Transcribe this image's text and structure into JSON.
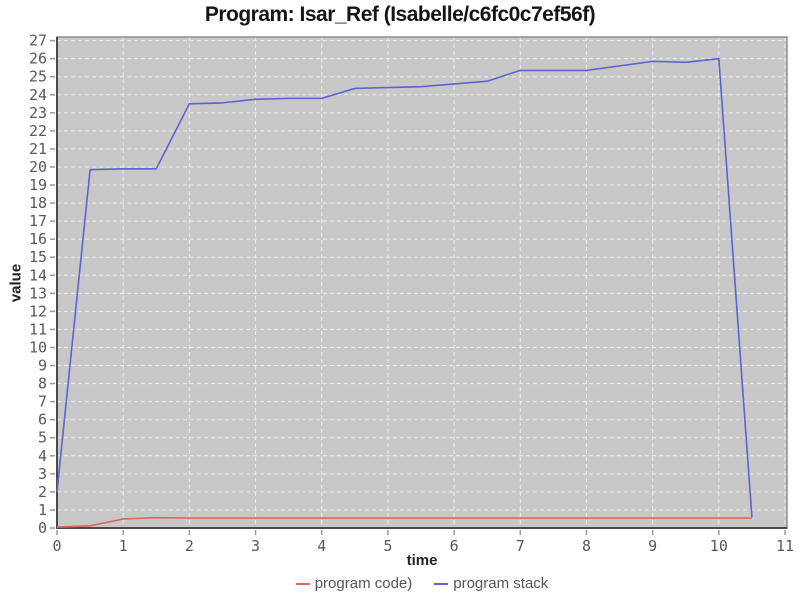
{
  "chart_data": {
    "type": "line",
    "title": "Program: Isar_Ref (Isabelle/c6fc0c7ef56f)",
    "xlabel": "time",
    "ylabel": "value",
    "xlim": [
      0,
      11.03
    ],
    "ylim": [
      0,
      27.2
    ],
    "grid": true,
    "legend_position": "bottom-center",
    "plot_bg": "#c8c8c8",
    "grid_color": "#ececec",
    "axis_color": "#4a4a4a",
    "border_color": "#8e8e8e",
    "x_ticks": [
      0,
      1,
      2,
      3,
      4,
      5,
      6,
      7,
      8,
      9,
      10,
      11
    ],
    "y_ticks": [
      0,
      1,
      2,
      3,
      4,
      5,
      6,
      7,
      8,
      9,
      10,
      11,
      12,
      13,
      14,
      15,
      16,
      17,
      18,
      19,
      20,
      21,
      22,
      23,
      24,
      25,
      26,
      27
    ],
    "x": [
      0,
      0.5,
      1,
      1.5,
      2,
      2.5,
      3,
      3.5,
      4,
      4.5,
      5,
      5.5,
      6,
      6.5,
      7,
      7.5,
      8,
      8.5,
      9,
      9.5,
      10,
      10.5
    ],
    "series": [
      {
        "name": "program code)",
        "color": "#e0655c",
        "values": [
          0.05,
          0.12,
          0.5,
          0.57,
          0.55,
          0.55,
          0.55,
          0.55,
          0.55,
          0.55,
          0.55,
          0.55,
          0.55,
          0.55,
          0.55,
          0.55,
          0.55,
          0.55,
          0.55,
          0.55,
          0.55,
          0.55
        ]
      },
      {
        "name": "program stack",
        "color": "#5f62d1",
        "values": [
          2.0,
          19.85,
          19.9,
          19.9,
          23.5,
          23.55,
          23.75,
          23.8,
          23.8,
          24.35,
          24.4,
          24.45,
          24.6,
          24.75,
          25.35,
          25.35,
          25.35,
          25.6,
          25.85,
          25.8,
          26.0,
          0.6
        ]
      }
    ]
  }
}
